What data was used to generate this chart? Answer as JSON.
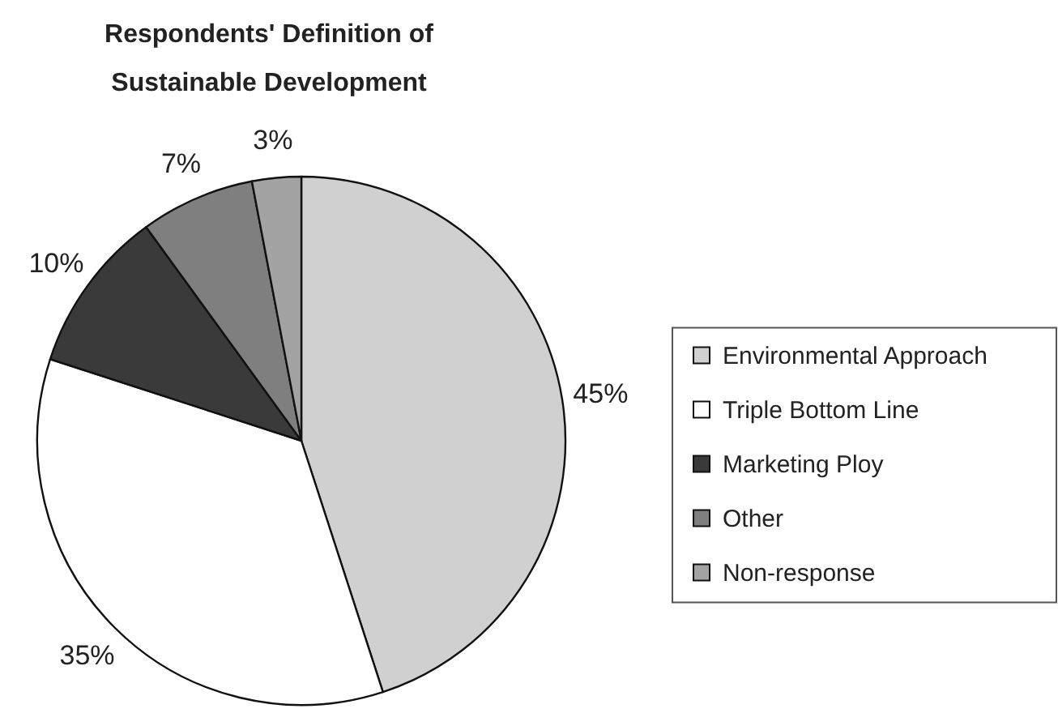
{
  "chart_data": {
    "type": "pie",
    "title": "Respondents' Definition of\nSustainable Development",
    "categories": [
      "Environmental Approach",
      "Triple Bottom Line",
      "Marketing Ploy",
      "Other",
      "Non-response"
    ],
    "values": [
      45,
      35,
      10,
      7,
      3
    ],
    "colors": [
      "#cfd0cf",
      "#ffffff",
      "#3a3a3a",
      "#7f7f7f",
      "#a3a3a3"
    ],
    "value_labels": [
      "45%",
      "35%",
      "10%",
      "7%",
      "3%"
    ],
    "legend": "right"
  }
}
